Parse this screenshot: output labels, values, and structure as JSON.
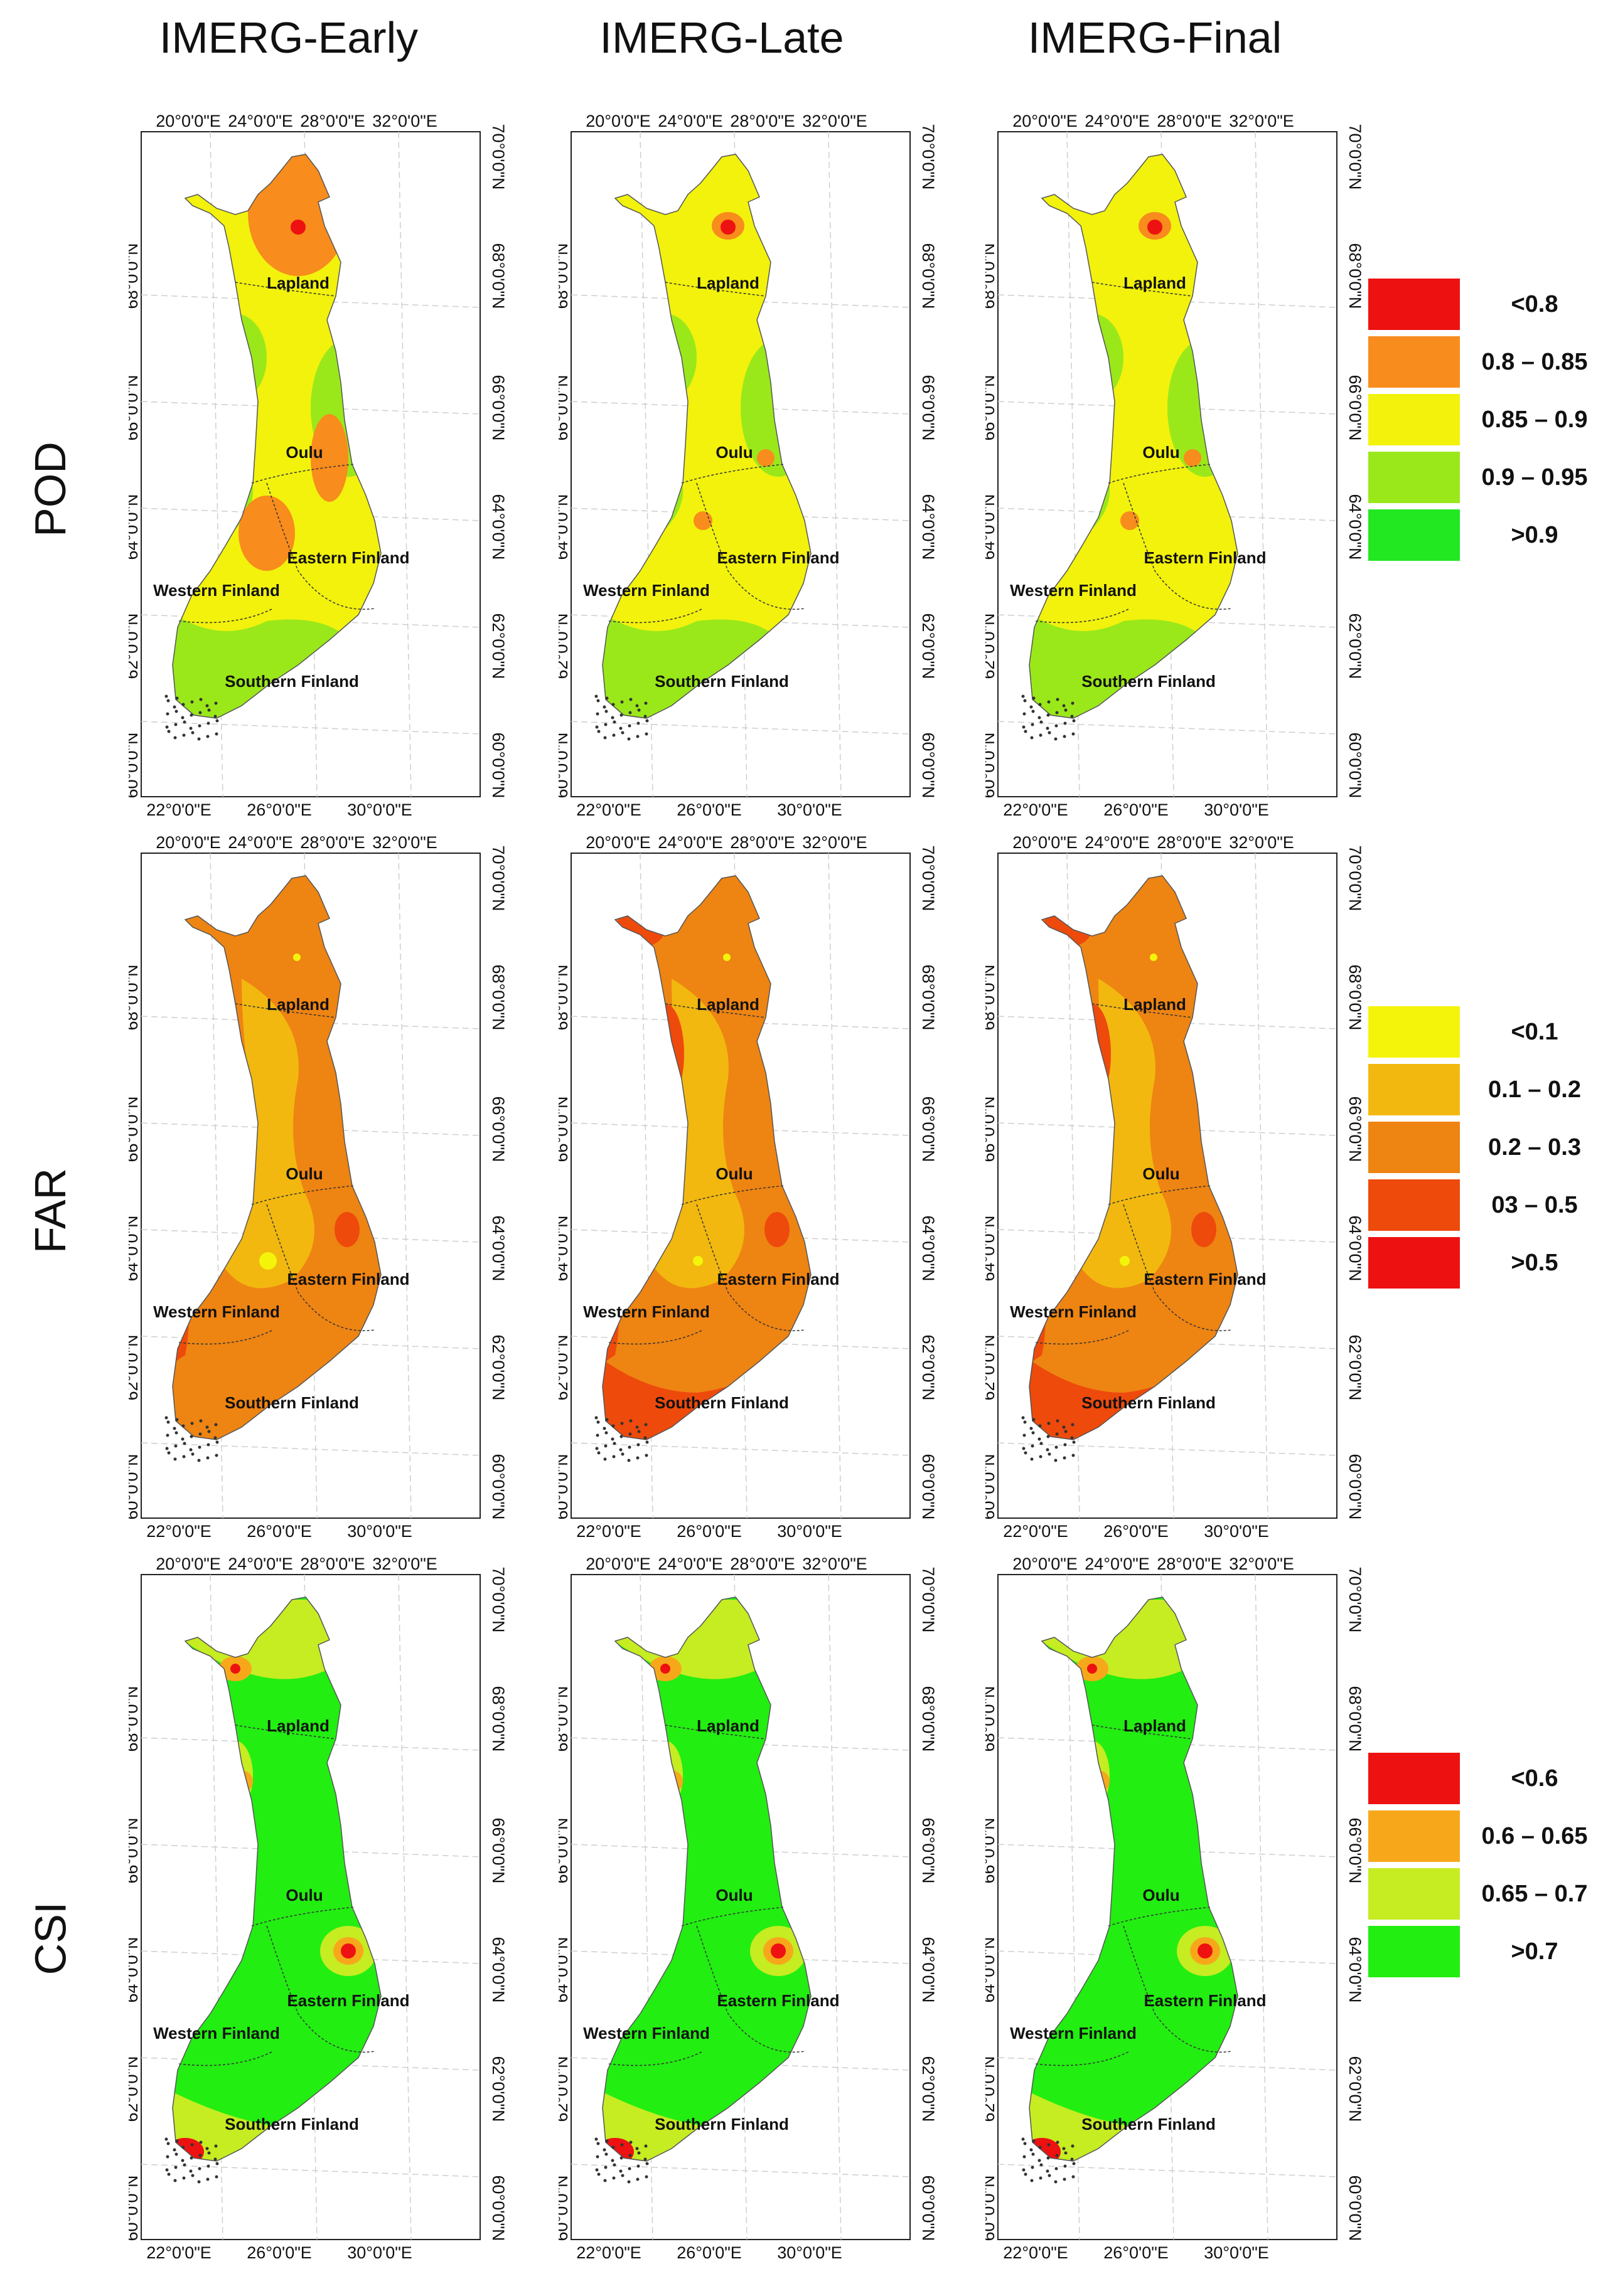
{
  "columns": [
    "IMERG-Early",
    "IMERG-Late",
    "IMERG-Final"
  ],
  "rows": [
    {
      "metric": "POD",
      "legend": [
        {
          "label": "<0.8",
          "color": "#ee1111"
        },
        {
          "label": "0.8 – 0.85",
          "color": "#f88c1c"
        },
        {
          "label": "0.85 – 0.9",
          "color": "#f2f20d"
        },
        {
          "label": "0.9 – 0.95",
          "color": "#9ae81a"
        },
        {
          "label": ">0.9",
          "color": "#22e822"
        }
      ],
      "base_color": "#f2f20d",
      "coast_color": "#9ae81a"
    },
    {
      "metric": "FAR",
      "legend": [
        {
          "label": "<0.1",
          "color": "#f4f40a"
        },
        {
          "label": "0.1 – 0.2",
          "color": "#f2b80f"
        },
        {
          "label": "0.2 – 0.3",
          "color": "#ee8412"
        },
        {
          "label": "03 – 0.5",
          "color": "#ee4a0c"
        },
        {
          "label": ">0.5",
          "color": "#ee1111"
        }
      ],
      "base_color": "#ee8412",
      "coast_color": "#ee4a0c"
    },
    {
      "metric": "CSI",
      "legend": [
        {
          "label": "<0.6",
          "color": "#ee1111"
        },
        {
          "label": "0.6 – 0.65",
          "color": "#f7a81a"
        },
        {
          "label": "0.65 – 0.7",
          "color": "#c6ec22"
        },
        {
          "label": ">0.7",
          "color": "#22ee11"
        }
      ],
      "base_color": "#22ee11",
      "coast_color": "#c6ec22"
    }
  ],
  "axes": {
    "top_ticks": [
      "20°0'0\"E",
      "24°0'0\"E",
      "28°0'0\"E",
      "32°0'0\"E"
    ],
    "bottom_ticks": [
      "22°0'0\"E",
      "26°0'0\"E",
      "30°0'0\"E"
    ],
    "lat_ticks": [
      "70°0'0\"N",
      "68°0'0\"N",
      "66°0'0\"N",
      "64°0'0\"N",
      "62°0'0\"N",
      "60°0'0\"N"
    ]
  },
  "regions": [
    "Lapland",
    "Oulu",
    "Eastern Finland",
    "Western Finland",
    "Southern Finland"
  ]
}
